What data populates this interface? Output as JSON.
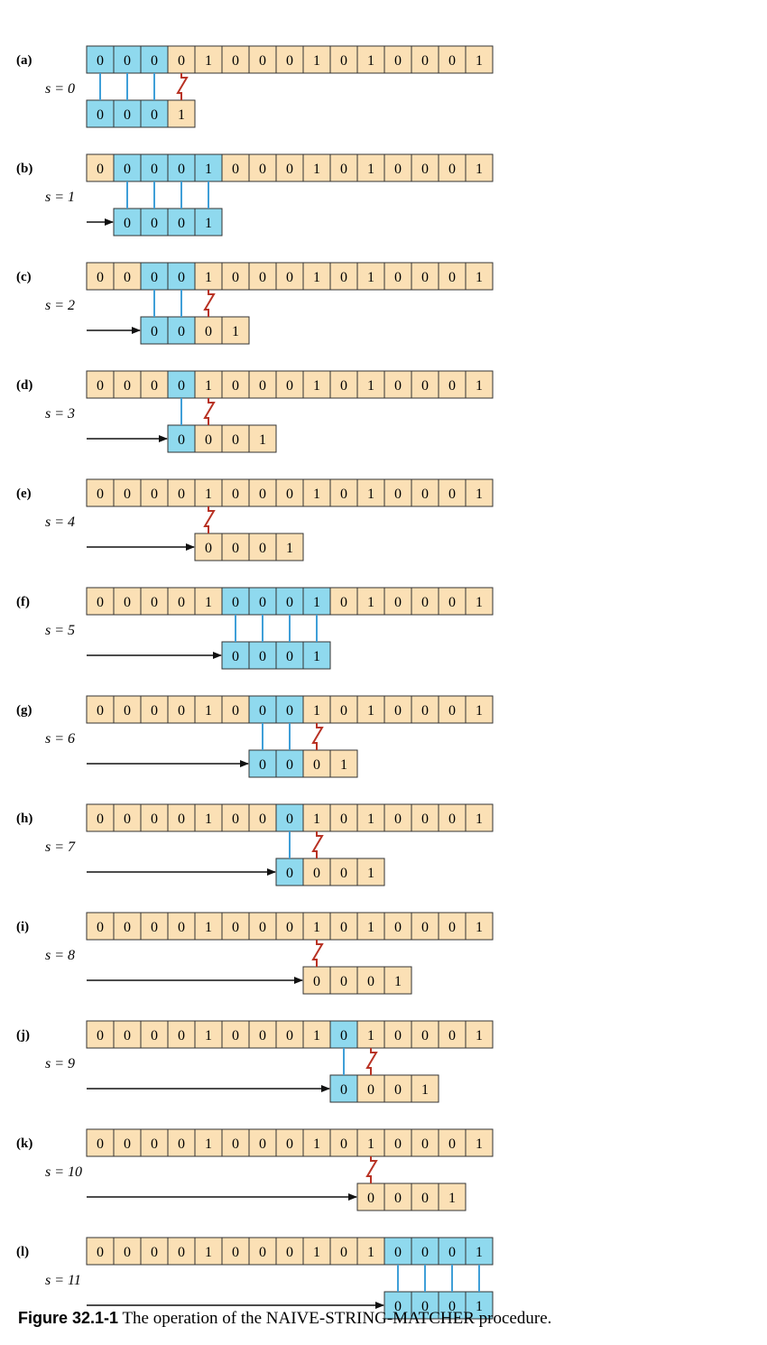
{
  "text_string": [
    "0",
    "0",
    "0",
    "0",
    "1",
    "0",
    "0",
    "0",
    "1",
    "0",
    "1",
    "0",
    "0",
    "0",
    "1"
  ],
  "pattern": [
    "0",
    "0",
    "0",
    "1"
  ],
  "panels": [
    {
      "label": "(a)",
      "shift_label": "s = 0",
      "shift": 0,
      "matches": 3,
      "mismatch": true
    },
    {
      "label": "(b)",
      "shift_label": "s = 1",
      "shift": 1,
      "matches": 4,
      "mismatch": false
    },
    {
      "label": "(c)",
      "shift_label": "s = 2",
      "shift": 2,
      "matches": 2,
      "mismatch": true
    },
    {
      "label": "(d)",
      "shift_label": "s = 3",
      "shift": 3,
      "matches": 1,
      "mismatch": true
    },
    {
      "label": "(e)",
      "shift_label": "s = 4",
      "shift": 4,
      "matches": 0,
      "mismatch": true
    },
    {
      "label": "(f)",
      "shift_label": "s = 5",
      "shift": 5,
      "matches": 4,
      "mismatch": false
    },
    {
      "label": "(g)",
      "shift_label": "s = 6",
      "shift": 6,
      "matches": 2,
      "mismatch": true
    },
    {
      "label": "(h)",
      "shift_label": "s = 7",
      "shift": 7,
      "matches": 1,
      "mismatch": true
    },
    {
      "label": "(i)",
      "shift_label": "s = 8",
      "shift": 8,
      "matches": 0,
      "mismatch": true
    },
    {
      "label": "(j)",
      "shift_label": "s = 9",
      "shift": 9,
      "matches": 1,
      "mismatch": true
    },
    {
      "label": "(k)",
      "shift_label": "s = 10",
      "shift": 10,
      "matches": 0,
      "mismatch": true
    },
    {
      "label": "(l)",
      "shift_label": "s = 11",
      "shift": 11,
      "matches": 4,
      "mismatch": false
    }
  ],
  "colors": {
    "cell_plain": "#fbe0b5",
    "cell_match": "#8fd9ee",
    "cell_border": "#333333",
    "match_line": "#3f9fd8",
    "mismatch_zigzag": "#b83224",
    "arrow": "#111111"
  },
  "caption": {
    "label": "Figure 32.1-1",
    "text": " The operation of the NAIVE-STRING-MATCHER procedure."
  }
}
